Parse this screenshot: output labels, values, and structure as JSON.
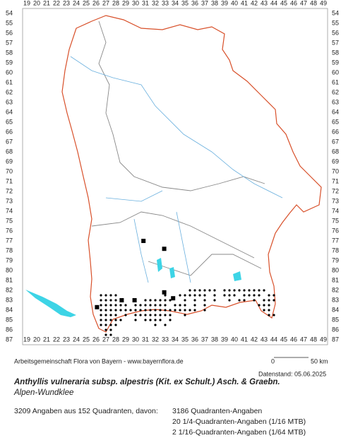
{
  "x_labels": [
    19,
    20,
    21,
    22,
    23,
    24,
    25,
    26,
    27,
    28,
    29,
    30,
    31,
    32,
    33,
    34,
    35,
    36,
    37,
    38,
    39,
    40,
    41,
    42,
    43,
    44,
    45,
    46,
    47,
    48,
    49
  ],
  "y_labels": [
    54,
    55,
    56,
    57,
    58,
    59,
    60,
    61,
    62,
    63,
    64,
    65,
    66,
    67,
    68,
    69,
    70,
    71,
    72,
    73,
    74,
    75,
    76,
    77,
    78,
    79,
    80,
    81,
    82,
    83,
    84,
    85,
    86,
    87
  ],
  "squares": [
    {
      "x": 30.8,
      "y": 77
    },
    {
      "x": 32.9,
      "y": 77.8
    },
    {
      "x": 28.6,
      "y": 83
    },
    {
      "x": 29.9,
      "y": 83
    },
    {
      "x": 32.9,
      "y": 82.2
    },
    {
      "x": 33.8,
      "y": 82.8
    },
    {
      "x": 26.1,
      "y": 83.7
    }
  ],
  "dot_rows": [
    {
      "y": 82,
      "x": [
        35.5,
        36,
        36.5,
        37,
        37.5,
        38,
        39,
        39.5,
        40,
        40.5,
        41,
        41.5,
        42,
        42.5,
        43
      ]
    },
    {
      "y": 82.5,
      "x": [
        26.5,
        27,
        27.5,
        28,
        33,
        34.5,
        35,
        35.5,
        36,
        36.5,
        37,
        38,
        39,
        39.5,
        40,
        41,
        41.5,
        42,
        42.5,
        43.5,
        44
      ]
    },
    {
      "y": 83,
      "x": [
        26.5,
        27,
        27.5,
        28,
        28.5,
        31,
        31.5,
        32,
        32.5,
        33,
        33.5,
        35,
        36,
        37,
        38,
        39.5,
        40.5,
        41,
        42,
        43,
        43.5,
        44
      ]
    },
    {
      "y": 83.5,
      "x": [
        26.5,
        27,
        27.5,
        28,
        28.5,
        29,
        30,
        30.5,
        31,
        31.5,
        32,
        32.5,
        33,
        34,
        34.5,
        35,
        36,
        37,
        42.5,
        43,
        43.5
      ]
    },
    {
      "y": 84,
      "x": [
        26.5,
        27,
        27.5,
        28,
        28.5,
        29,
        29.5,
        30,
        30.5,
        31,
        31.5,
        32,
        32.5,
        33,
        33.5,
        34,
        34.5,
        35,
        35.5,
        36,
        37,
        43,
        43.5
      ]
    },
    {
      "y": 84.5,
      "x": [
        26.5,
        27,
        27.5,
        28,
        29,
        30,
        30.5,
        31,
        31.5,
        32,
        32.5,
        33,
        33.5,
        35,
        43.5,
        44
      ]
    },
    {
      "y": 85,
      "x": [
        26.5,
        27,
        27.5,
        28,
        28.5,
        30,
        31,
        31.5,
        32,
        32.5,
        33.5
      ]
    },
    {
      "y": 85.5,
      "x": [
        26.5,
        27,
        27.5,
        28,
        32,
        33
      ]
    },
    {
      "y": 86,
      "x": [
        27,
        27.5
      ]
    },
    {
      "y": 86.5,
      "x": [
        27,
        27.5
      ]
    }
  ],
  "credit": "Arbeitsgemeinschaft Flora von Bayern - www.bayernflora.de",
  "scale_start": "0",
  "scale_end": "50 km",
  "date": "Datenstand: 05.06.2025",
  "title": "Anthyllis vulneraria subsp. alpestris (Kit. ex Schult.) Asch. & Graebn.",
  "common_name": "Alpen-Wundklee",
  "summary": "3209 Angaben aus 152 Quadranten, davon:",
  "counts": [
    "3186 Quadranten-Angaben",
    "20 1/4-Quadranten-Angaben (1/16 MTB)",
    "2 1/16-Quadranten-Angaben (1/64 MTB)"
  ]
}
